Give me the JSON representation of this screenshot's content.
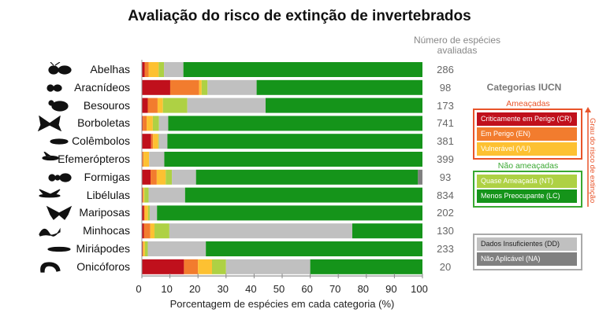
{
  "chart_data": {
    "type": "bar",
    "orientation": "horizontal-stacked-100",
    "title": "Avaliação do risco de extinção de invertebrados",
    "xlabel": "Porcentagem de espécies em cada categoria (%)",
    "xlim": [
      0,
      100
    ],
    "xticks": [
      0,
      10,
      20,
      30,
      40,
      50,
      60,
      70,
      80,
      90,
      100
    ],
    "count_header": "Número de espécies avaliadas",
    "categories": [
      "Abelhas",
      "Aracnídeos",
      "Besouros",
      "Borboletas",
      "Colêmbolos",
      "Efemerópteros",
      "Formigas",
      "Libélulas",
      "Mariposas",
      "Minhocas",
      "Miriápodes",
      "Onicóforos"
    ],
    "species_counts": [
      286,
      98,
      173,
      741,
      381,
      399,
      93,
      834,
      202,
      130,
      233,
      20
    ],
    "series": [
      {
        "name": "Criticamente em Perigo (CR)",
        "color": "#c0101c",
        "values": [
          1.0,
          10.1,
          2.1,
          0.3,
          3.3,
          0,
          3.1,
          0.3,
          0.7,
          0.7,
          0.3,
          15
        ]
      },
      {
        "name": "Em Perigo (EN)",
        "color": "#f27c2e",
        "values": [
          1.4,
          10.3,
          3.5,
          1.4,
          0.7,
          0.6,
          2.2,
          0.2,
          0.3,
          2.3,
          0.2,
          5
        ]
      },
      {
        "name": "Vulnerável (VU)",
        "color": "#fdc132",
        "values": [
          3.6,
          0.9,
          1.9,
          2.2,
          1.8,
          2.0,
          3.2,
          0.4,
          1.2,
          1.5,
          0.6,
          5
        ]
      },
      {
        "name": "Quase Ameaçada (NT)",
        "color": "#aed144",
        "values": [
          1.9,
          2.1,
          8.7,
          2.2,
          0.3,
          0,
          2.2,
          1.5,
          0.6,
          5.3,
          1.0,
          5
        ]
      },
      {
        "name": "Menos Preocupante (LC)",
        "color": "#15941a",
        "values": [
          85.2,
          59.1,
          55.9,
          90.6,
          90.9,
          92.0,
          79.1,
          84.6,
          94.6,
          25.0,
          77.2,
          40
        ]
      },
      {
        "name": "Dados Insuficientes (DD)",
        "color": "#c0c0c0",
        "values": [
          6.9,
          17.5,
          27.9,
          3.3,
          3.0,
          5.4,
          8.6,
          13.0,
          2.6,
          65.2,
          20.7,
          30
        ]
      },
      {
        "name": "Não Aplicável (NA)",
        "color": "#808080",
        "values": [
          0,
          0,
          0,
          0,
          0,
          0,
          1.6,
          0,
          0,
          0,
          0,
          0
        ]
      }
    ],
    "stack_order": [
      0,
      1,
      2,
      3,
      5,
      4,
      6
    ],
    "legend": {
      "title": "Categorias IUCN",
      "threatened_label": "Ameaçadas",
      "not_threatened_label": "Não ameaçadas",
      "arrow_label": "Grau do risco de extinção",
      "placement": "right"
    },
    "group_colors": {
      "threatened": "#e8542a",
      "not_threatened": "#3aa832",
      "other": "#aaaaaa"
    }
  }
}
